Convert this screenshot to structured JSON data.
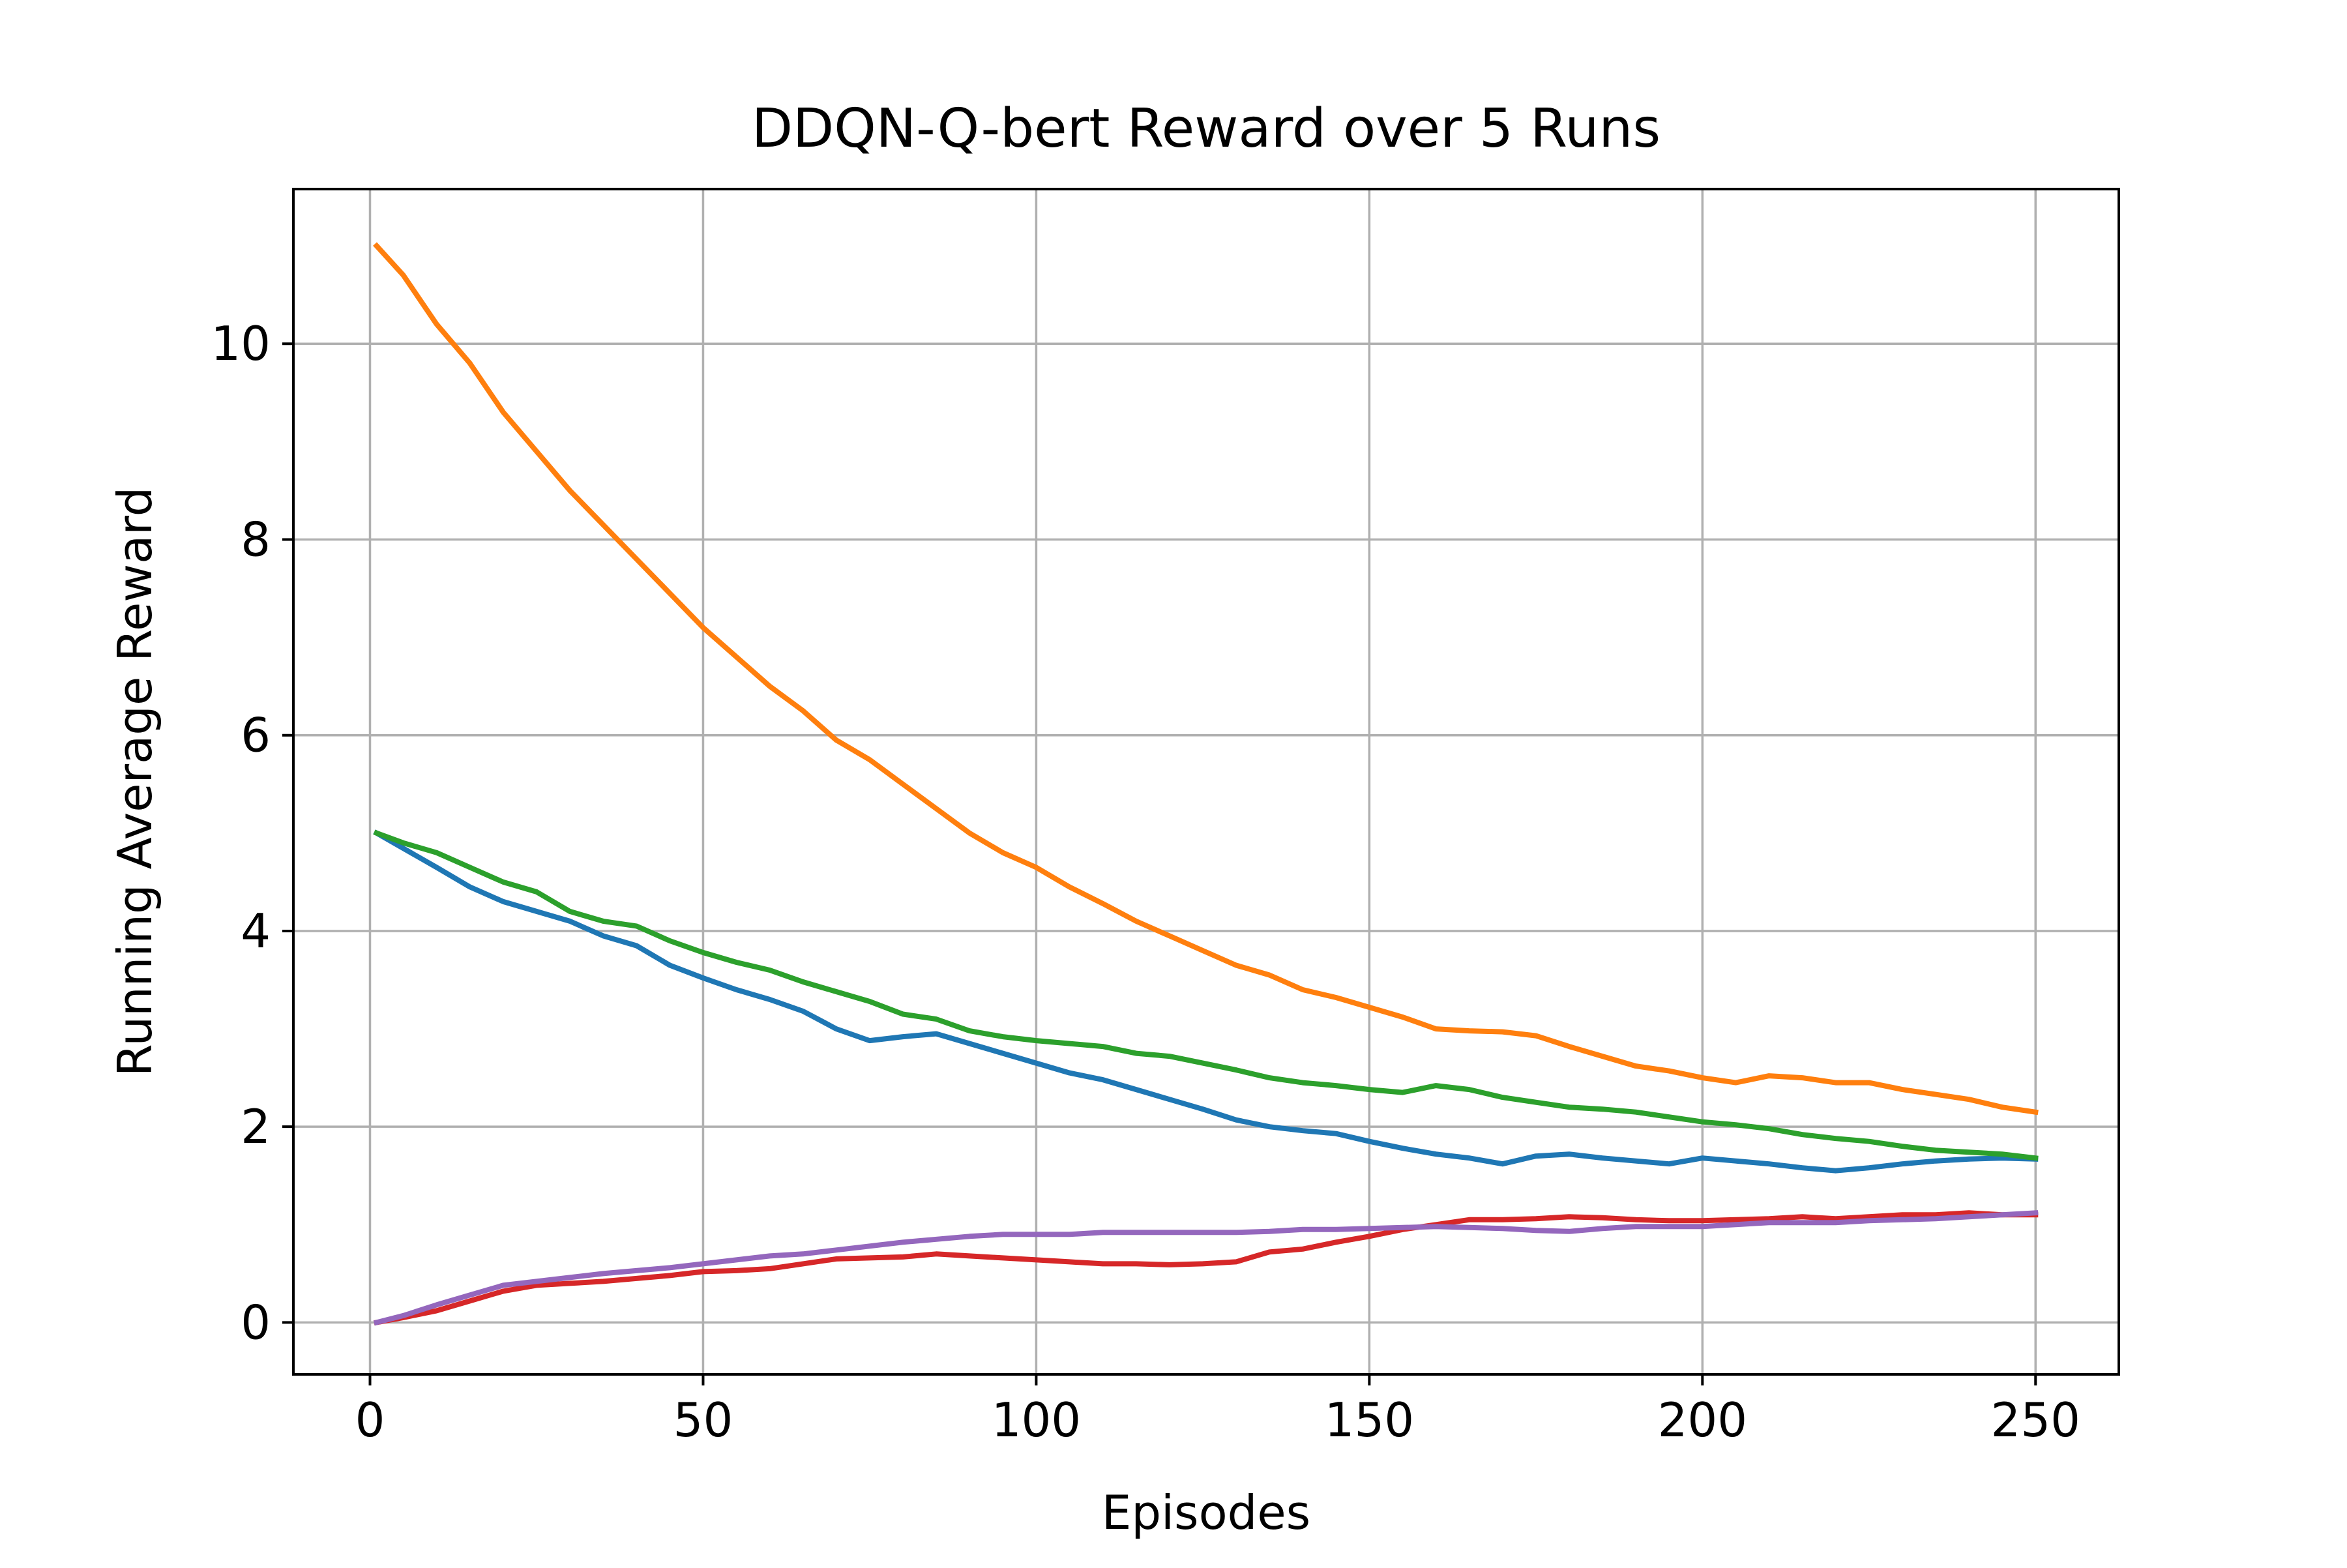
{
  "chart_data": {
    "type": "line",
    "title": "DDQN-Q-bert Reward over 5 Runs",
    "xlabel": "Episodes",
    "ylabel": "Running Average Reward",
    "xlim": [
      -11.5,
      262.5
    ],
    "ylim": [
      -0.53,
      11.58
    ],
    "xticks": [
      0,
      50,
      100,
      150,
      200,
      250
    ],
    "yticks": [
      0,
      2,
      4,
      6,
      8,
      10
    ],
    "xtick_labels": [
      "0",
      "50",
      "100",
      "150",
      "200",
      "250"
    ],
    "ytick_labels": [
      "0",
      "2",
      "4",
      "6",
      "8",
      "10"
    ],
    "grid": true,
    "legend": "none",
    "series": [
      {
        "color": "#1f77b4",
        "points": [
          [
            1,
            5.0
          ],
          [
            10,
            4.65
          ],
          [
            15,
            4.45
          ],
          [
            20,
            4.3
          ],
          [
            25,
            4.2
          ],
          [
            30,
            4.1
          ],
          [
            35,
            3.95
          ],
          [
            40,
            3.85
          ],
          [
            45,
            3.65
          ],
          [
            50,
            3.52
          ],
          [
            55,
            3.4
          ],
          [
            60,
            3.3
          ],
          [
            65,
            3.18
          ],
          [
            70,
            3.0
          ],
          [
            75,
            2.88
          ],
          [
            80,
            2.92
          ],
          [
            85,
            2.95
          ],
          [
            90,
            2.85
          ],
          [
            95,
            2.75
          ],
          [
            100,
            2.65
          ],
          [
            105,
            2.55
          ],
          [
            110,
            2.48
          ],
          [
            115,
            2.38
          ],
          [
            120,
            2.28
          ],
          [
            125,
            2.18
          ],
          [
            130,
            2.07
          ],
          [
            135,
            2.0
          ],
          [
            140,
            1.96
          ],
          [
            145,
            1.93
          ],
          [
            150,
            1.85
          ],
          [
            155,
            1.78
          ],
          [
            160,
            1.72
          ],
          [
            165,
            1.68
          ],
          [
            170,
            1.62
          ],
          [
            175,
            1.7
          ],
          [
            180,
            1.72
          ],
          [
            185,
            1.68
          ],
          [
            190,
            1.65
          ],
          [
            195,
            1.62
          ],
          [
            200,
            1.68
          ],
          [
            205,
            1.65
          ],
          [
            210,
            1.62
          ],
          [
            215,
            1.58
          ],
          [
            220,
            1.55
          ],
          [
            225,
            1.58
          ],
          [
            230,
            1.62
          ],
          [
            235,
            1.65
          ],
          [
            240,
            1.67
          ],
          [
            245,
            1.68
          ],
          [
            250,
            1.67
          ]
        ]
      },
      {
        "color": "#ff7f0e",
        "points": [
          [
            1,
            11.0
          ],
          [
            5,
            10.7
          ],
          [
            10,
            10.2
          ],
          [
            15,
            9.8
          ],
          [
            20,
            9.3
          ],
          [
            25,
            8.9
          ],
          [
            30,
            8.5
          ],
          [
            35,
            8.15
          ],
          [
            40,
            7.8
          ],
          [
            45,
            7.45
          ],
          [
            50,
            7.1
          ],
          [
            55,
            6.8
          ],
          [
            60,
            6.5
          ],
          [
            65,
            6.25
          ],
          [
            70,
            5.95
          ],
          [
            75,
            5.75
          ],
          [
            80,
            5.5
          ],
          [
            85,
            5.25
          ],
          [
            90,
            5.0
          ],
          [
            95,
            4.8
          ],
          [
            100,
            4.65
          ],
          [
            105,
            4.45
          ],
          [
            110,
            4.28
          ],
          [
            115,
            4.1
          ],
          [
            120,
            3.95
          ],
          [
            125,
            3.8
          ],
          [
            130,
            3.65
          ],
          [
            135,
            3.55
          ],
          [
            140,
            3.4
          ],
          [
            145,
            3.32
          ],
          [
            150,
            3.22
          ],
          [
            155,
            3.12
          ],
          [
            160,
            3.0
          ],
          [
            165,
            2.98
          ],
          [
            170,
            2.97
          ],
          [
            175,
            2.93
          ],
          [
            180,
            2.82
          ],
          [
            185,
            2.72
          ],
          [
            190,
            2.62
          ],
          [
            195,
            2.57
          ],
          [
            200,
            2.5
          ],
          [
            205,
            2.45
          ],
          [
            210,
            2.52
          ],
          [
            215,
            2.5
          ],
          [
            220,
            2.45
          ],
          [
            225,
            2.45
          ],
          [
            230,
            2.38
          ],
          [
            235,
            2.33
          ],
          [
            240,
            2.28
          ],
          [
            245,
            2.2
          ],
          [
            250,
            2.15
          ]
        ]
      },
      {
        "color": "#2ca02c",
        "points": [
          [
            1,
            5.0
          ],
          [
            5,
            4.9
          ],
          [
            10,
            4.8
          ],
          [
            15,
            4.65
          ],
          [
            20,
            4.5
          ],
          [
            25,
            4.4
          ],
          [
            30,
            4.2
          ],
          [
            35,
            4.1
          ],
          [
            40,
            4.05
          ],
          [
            45,
            3.9
          ],
          [
            50,
            3.78
          ],
          [
            55,
            3.68
          ],
          [
            60,
            3.6
          ],
          [
            65,
            3.48
          ],
          [
            70,
            3.38
          ],
          [
            75,
            3.28
          ],
          [
            80,
            3.15
          ],
          [
            85,
            3.1
          ],
          [
            90,
            2.98
          ],
          [
            95,
            2.92
          ],
          [
            100,
            2.88
          ],
          [
            105,
            2.85
          ],
          [
            110,
            2.82
          ],
          [
            115,
            2.75
          ],
          [
            120,
            2.72
          ],
          [
            125,
            2.65
          ],
          [
            130,
            2.58
          ],
          [
            135,
            2.5
          ],
          [
            140,
            2.45
          ],
          [
            145,
            2.42
          ],
          [
            150,
            2.38
          ],
          [
            155,
            2.35
          ],
          [
            160,
            2.42
          ],
          [
            165,
            2.38
          ],
          [
            170,
            2.3
          ],
          [
            175,
            2.25
          ],
          [
            180,
            2.2
          ],
          [
            185,
            2.18
          ],
          [
            190,
            2.15
          ],
          [
            195,
            2.1
          ],
          [
            200,
            2.05
          ],
          [
            205,
            2.02
          ],
          [
            210,
            1.98
          ],
          [
            215,
            1.92
          ],
          [
            220,
            1.88
          ],
          [
            225,
            1.85
          ],
          [
            230,
            1.8
          ],
          [
            235,
            1.76
          ],
          [
            240,
            1.74
          ],
          [
            245,
            1.72
          ],
          [
            250,
            1.68
          ]
        ]
      },
      {
        "color": "#d62728",
        "points": [
          [
            1,
            0.0
          ],
          [
            5,
            0.05
          ],
          [
            10,
            0.12
          ],
          [
            15,
            0.22
          ],
          [
            20,
            0.32
          ],
          [
            25,
            0.38
          ],
          [
            30,
            0.4
          ],
          [
            35,
            0.42
          ],
          [
            40,
            0.45
          ],
          [
            45,
            0.48
          ],
          [
            50,
            0.52
          ],
          [
            55,
            0.53
          ],
          [
            60,
            0.55
          ],
          [
            65,
            0.6
          ],
          [
            70,
            0.65
          ],
          [
            75,
            0.66
          ],
          [
            80,
            0.67
          ],
          [
            85,
            0.7
          ],
          [
            90,
            0.68
          ],
          [
            95,
            0.66
          ],
          [
            100,
            0.64
          ],
          [
            105,
            0.62
          ],
          [
            110,
            0.6
          ],
          [
            115,
            0.6
          ],
          [
            120,
            0.59
          ],
          [
            125,
            0.6
          ],
          [
            130,
            0.62
          ],
          [
            135,
            0.72
          ],
          [
            140,
            0.75
          ],
          [
            145,
            0.82
          ],
          [
            150,
            0.88
          ],
          [
            155,
            0.95
          ],
          [
            160,
            1.0
          ],
          [
            165,
            1.05
          ],
          [
            170,
            1.05
          ],
          [
            175,
            1.06
          ],
          [
            180,
            1.08
          ],
          [
            185,
            1.07
          ],
          [
            190,
            1.05
          ],
          [
            195,
            1.04
          ],
          [
            200,
            1.04
          ],
          [
            205,
            1.05
          ],
          [
            210,
            1.06
          ],
          [
            215,
            1.08
          ],
          [
            220,
            1.06
          ],
          [
            225,
            1.08
          ],
          [
            230,
            1.1
          ],
          [
            235,
            1.1
          ],
          [
            240,
            1.12
          ],
          [
            245,
            1.1
          ],
          [
            250,
            1.1
          ]
        ]
      },
      {
        "color": "#9467bd",
        "points": [
          [
            1,
            0.0
          ],
          [
            5,
            0.07
          ],
          [
            10,
            0.18
          ],
          [
            15,
            0.28
          ],
          [
            20,
            0.38
          ],
          [
            25,
            0.42
          ],
          [
            30,
            0.46
          ],
          [
            35,
            0.5
          ],
          [
            40,
            0.53
          ],
          [
            45,
            0.56
          ],
          [
            50,
            0.6
          ],
          [
            55,
            0.64
          ],
          [
            60,
            0.68
          ],
          [
            65,
            0.7
          ],
          [
            70,
            0.74
          ],
          [
            75,
            0.78
          ],
          [
            80,
            0.82
          ],
          [
            85,
            0.85
          ],
          [
            90,
            0.88
          ],
          [
            95,
            0.9
          ],
          [
            100,
            0.9
          ],
          [
            105,
            0.9
          ],
          [
            110,
            0.92
          ],
          [
            115,
            0.92
          ],
          [
            120,
            0.92
          ],
          [
            125,
            0.92
          ],
          [
            130,
            0.92
          ],
          [
            135,
            0.93
          ],
          [
            140,
            0.95
          ],
          [
            145,
            0.95
          ],
          [
            150,
            0.96
          ],
          [
            155,
            0.97
          ],
          [
            160,
            0.98
          ],
          [
            165,
            0.97
          ],
          [
            170,
            0.96
          ],
          [
            175,
            0.94
          ],
          [
            180,
            0.93
          ],
          [
            185,
            0.96
          ],
          [
            190,
            0.98
          ],
          [
            195,
            0.98
          ],
          [
            200,
            0.98
          ],
          [
            205,
            1.0
          ],
          [
            210,
            1.02
          ],
          [
            215,
            1.02
          ],
          [
            220,
            1.02
          ],
          [
            225,
            1.04
          ],
          [
            230,
            1.05
          ],
          [
            235,
            1.06
          ],
          [
            240,
            1.08
          ],
          [
            245,
            1.1
          ],
          [
            250,
            1.12
          ]
        ]
      }
    ]
  }
}
